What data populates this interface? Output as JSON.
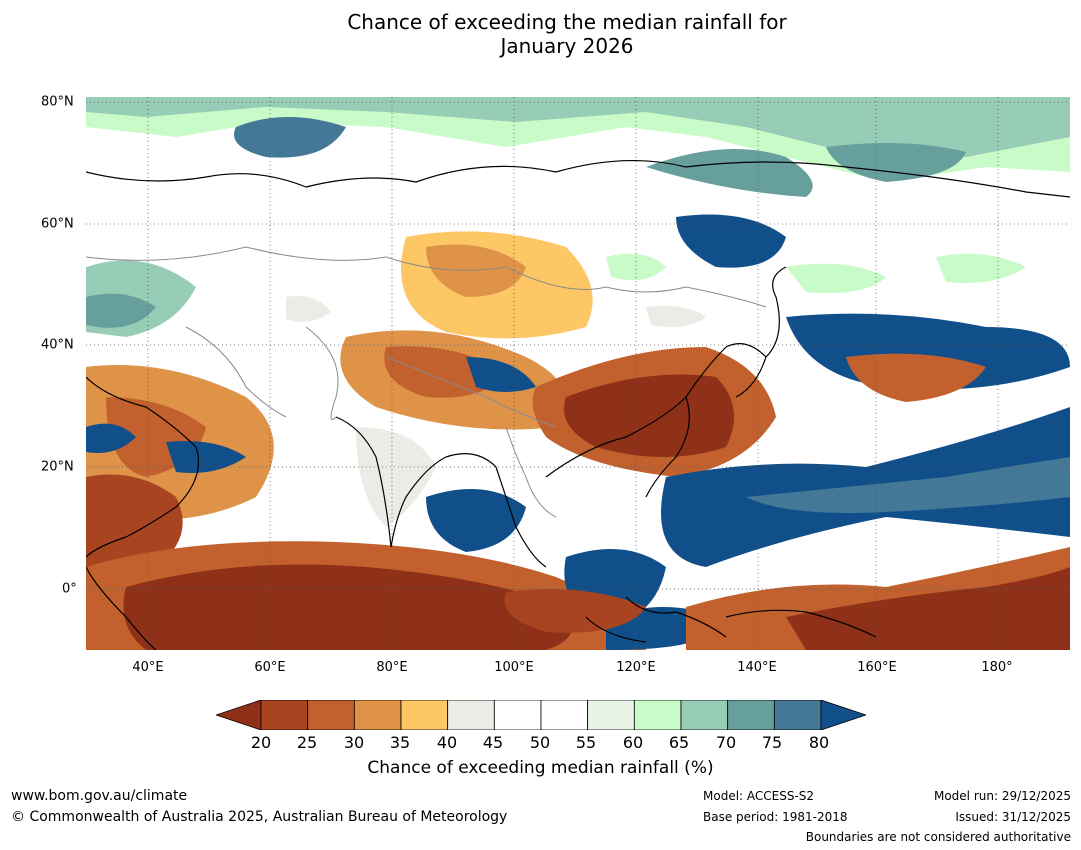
{
  "title": {
    "line1": "Chance of exceeding the median rainfall for",
    "line2": "January 2026"
  },
  "map": {
    "lon_labels": [
      "40°E",
      "60°E",
      "80°E",
      "100°E",
      "120°E",
      "140°E",
      "160°E",
      "180°"
    ],
    "lat_labels": [
      "80°N",
      "60°N",
      "40°N",
      "20°N",
      "0°"
    ],
    "extent": {
      "lon_min": 30,
      "lon_max": 191,
      "lat_min": -10,
      "lat_max": 80
    },
    "layers": [
      "rainfall-probability-shading",
      "coastlines",
      "country-boundaries",
      "graticule"
    ]
  },
  "colorbar": {
    "ticks": [
      "20",
      "25",
      "30",
      "35",
      "40",
      "45",
      "50",
      "55",
      "60",
      "65",
      "70",
      "75",
      "80"
    ],
    "colors": [
      "#8f3018",
      "#a8441f",
      "#c2612d",
      "#de9348",
      "#fcc764",
      "#ecebe6",
      "#ffffff",
      "#ffffff",
      "#e8f5e6",
      "#c8fbc7",
      "#97cdb6",
      "#679f9d",
      "#437896",
      "#114f8b"
    ],
    "label": "Chance of exceeding median rainfall (%)"
  },
  "footer": {
    "website": "www.bom.gov.au/climate",
    "copyright": "© Commonwealth of Australia 2025, Australian Bureau of Meteorology",
    "model": "Model: ACCESS-S2",
    "base_period": "Base period: 1981-2018",
    "model_run": "Model run: 29/12/2025",
    "issued": "Issued: 31/12/2025",
    "disclaimer": "Boundaries are not considered authoritative"
  }
}
